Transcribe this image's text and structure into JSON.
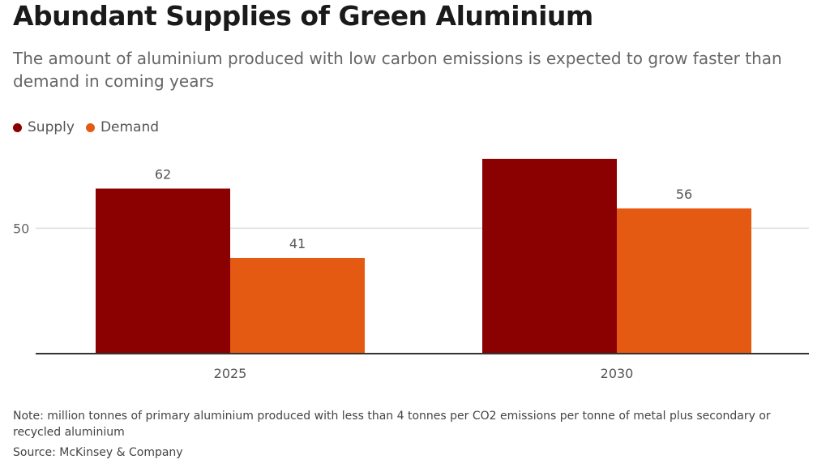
{
  "title": "Abundant Supplies of Green Aluminium",
  "subtitle": "The amount of aluminium produced with low carbon emissions is expected to grow faster than demand in coming years",
  "note": "Note: million tonnes of primary aluminium produced with less than 4 tonnes per CO2 emissions per tonne of metal plus secondary or recycled aluminium",
  "source": "Source: McKinsey & Company",
  "chart_data": {
    "type": "bar",
    "title": "Abundant Supplies of Green Aluminium",
    "subtitle": "The amount of aluminium produced with low carbon emissions is expected to grow faster than demand in coming years",
    "categories": [
      "2025",
      "2030"
    ],
    "series": [
      {
        "name": "Supply",
        "values": [
          62,
          71
        ],
        "color": "#8b0000"
      },
      {
        "name": "Demand",
        "values": [
          41,
          56
        ],
        "color": "#e55a12"
      }
    ],
    "yticks": [
      50
    ],
    "ylim": [
      12,
      80
    ],
    "xlabel": "",
    "ylabel": "",
    "grid": true,
    "legend_position": "top-left",
    "data_labels": true
  }
}
